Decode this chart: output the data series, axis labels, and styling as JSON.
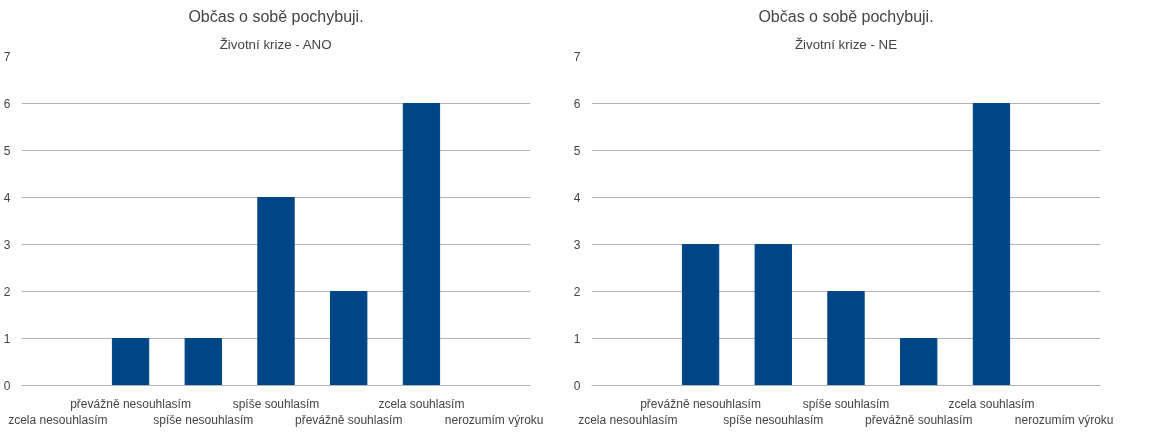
{
  "chart_data": [
    {
      "type": "bar",
      "title": "Občas o sobě pochybuji.",
      "subtitle": "Životní krize - ANO",
      "categories": [
        "zcela nesouhlasím",
        "převážně nesouhlasím",
        "spíše nesouhlasím",
        "spíše souhlasím",
        "převážně souhlasím",
        "zcela souhlasím",
        "nerozumím výroku"
      ],
      "values": [
        0,
        1,
        1,
        4,
        2,
        6,
        0
      ],
      "color": "#004586",
      "ylim": [
        0,
        7
      ],
      "yticks": [
        0,
        1,
        2,
        3,
        4,
        5,
        6,
        7
      ],
      "grid": "y"
    },
    {
      "type": "bar",
      "title": "Občas o sobě pochybuji.",
      "subtitle": "Životní krize - NE",
      "categories": [
        "zcela nesouhlasím",
        "převážně nesouhlasím",
        "spíše nesouhlasím",
        "spíše souhlasím",
        "převážně souhlasím",
        "zcela souhlasím",
        "nerozumím výroku"
      ],
      "values": [
        0,
        3,
        3,
        2,
        1,
        6,
        0
      ],
      "color": "#004586",
      "ylim": [
        0,
        7
      ],
      "yticks": [
        0,
        1,
        2,
        3,
        4,
        5,
        6,
        7
      ],
      "grid": "y"
    }
  ]
}
